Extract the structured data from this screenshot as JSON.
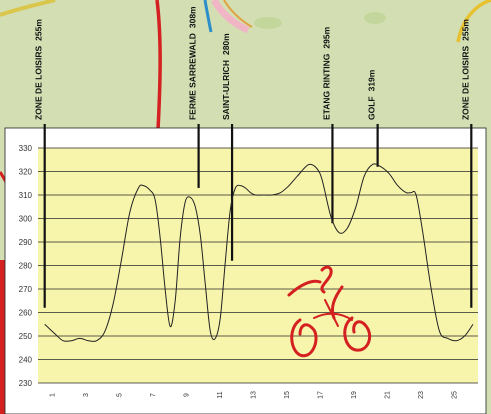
{
  "chart_data": {
    "type": "line",
    "title": "",
    "xlabel": "",
    "ylabel": "",
    "ylim": [
      230,
      330
    ],
    "xlim": [
      0,
      26.3
    ],
    "yticks": [
      230,
      240,
      250,
      260,
      270,
      280,
      290,
      300,
      310,
      320,
      330
    ],
    "xticks": [
      1,
      3,
      5,
      7,
      9,
      11,
      13,
      15,
      17,
      19,
      21,
      23,
      25
    ],
    "grid": true,
    "legend": "none",
    "colors": {
      "plot_background": "#f7f4ac",
      "line": "#222222",
      "grid": "#2a2a2a",
      "accent": "#d42020"
    },
    "waypoints": [
      {
        "name": "ZONE DE LOISIRS",
        "elevation": "255m",
        "x": 0.4,
        "y": 262
      },
      {
        "name": "FERME SARREWALD",
        "elevation": "308m",
        "x": 9.6,
        "y": 313
      },
      {
        "name": "SAINT-ULRICH",
        "elevation": "280m",
        "x": 11.6,
        "y": 282
      },
      {
        "name": "ETANG RINTING",
        "elevation": "295m",
        "x": 17.6,
        "y": 298
      },
      {
        "name": "GOLF",
        "elevation": "319m",
        "x": 20.3,
        "y": 322
      },
      {
        "name": "ZONE DE LOISIRS",
        "elevation": "255m",
        "x": 25.9,
        "y": 262
      }
    ],
    "series": [
      {
        "x": [
          0.4,
          1.0,
          1.5,
          2.0,
          2.5,
          3.0,
          3.5,
          4.0,
          4.5,
          5.0,
          5.5,
          6.0,
          6.3,
          6.7,
          7.0,
          7.3,
          7.6,
          7.9,
          8.2,
          8.5,
          8.8,
          9.1,
          9.4,
          9.7,
          10.0,
          10.3,
          10.6,
          10.9,
          11.2,
          11.5,
          11.8,
          12.1,
          12.4,
          12.7,
          13.0,
          13.5,
          14.0,
          14.5,
          15.0,
          15.5,
          16.0,
          16.3,
          16.7,
          17.0,
          17.5,
          18.0,
          18.5,
          19.0,
          19.5,
          20.0,
          20.5,
          21.0,
          21.5,
          22.0,
          22.3,
          22.6,
          23.0,
          23.5,
          24.0,
          24.5,
          25.0,
          25.5,
          26.0
        ],
        "values": [
          255,
          251,
          248,
          248,
          249,
          248,
          248,
          252,
          264,
          283,
          303,
          313,
          314,
          312,
          308,
          292,
          270,
          254,
          265,
          292,
          307,
          309,
          305,
          293,
          272,
          252,
          249,
          258,
          282,
          304,
          313,
          314,
          313,
          311,
          310,
          310,
          310,
          311,
          314,
          318,
          322,
          323,
          321,
          316,
          301,
          294,
          296,
          305,
          318,
          323,
          322,
          319,
          314,
          311,
          311,
          310,
          294,
          270,
          252,
          249,
          248,
          250,
          255
        ]
      }
    ]
  }
}
